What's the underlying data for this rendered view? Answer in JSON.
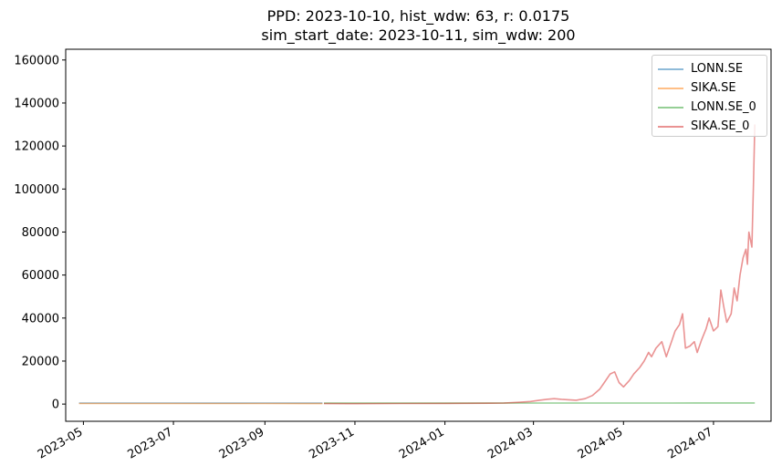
{
  "colors": {
    "LONN.SE": "#1f77b4",
    "SIKA.SE": "#ff7f0e",
    "LONN.SE_0": "#2ca02c",
    "SIKA.SE_0": "#d62728"
  },
  "chart_data": {
    "type": "line",
    "title_line1": "PPD: 2023-10-10, hist_wdw: 63, r: 0.0175",
    "title_line2": "sim_start_date: 2023-10-11, sim_wdw: 200",
    "xlabel": "",
    "ylabel": "",
    "xlim": [
      "2023-04-19",
      "2024-08-09"
    ],
    "ylim": [
      -8000,
      165000
    ],
    "x_tick_labels": [
      "2023-05",
      "2023-07",
      "2023-09",
      "2023-11",
      "2024-01",
      "2024-03",
      "2024-05",
      "2024-07"
    ],
    "y_tick_labels": [
      "0",
      "20000",
      "40000",
      "60000",
      "80000",
      "100000",
      "120000",
      "140000",
      "160000"
    ],
    "y_ticks": [
      0,
      20000,
      40000,
      60000,
      80000,
      100000,
      120000,
      140000,
      160000
    ],
    "grid": false,
    "legend_position": "top-right",
    "series": [
      {
        "name": "LONN.SE",
        "color_key": "LONN.SE",
        "x": [
          "2023-04-28",
          "2023-06-01",
          "2023-07-01",
          "2023-08-01",
          "2023-09-01",
          "2023-10-01",
          "2023-10-10"
        ],
        "y": [
          470,
          490,
          480,
          450,
          460,
          430,
          420
        ]
      },
      {
        "name": "SIKA.SE",
        "color_key": "SIKA.SE",
        "x": [
          "2023-04-28",
          "2023-06-01",
          "2023-07-01",
          "2023-08-01",
          "2023-09-01",
          "2023-10-01",
          "2023-10-10"
        ],
        "y": [
          270,
          280,
          275,
          260,
          250,
          230,
          220
        ]
      },
      {
        "name": "LONN.SE_0",
        "color_key": "LONN.SE_0",
        "x": [
          "2023-10-11",
          "2023-11-01",
          "2023-12-01",
          "2024-01-01",
          "2024-02-01",
          "2024-03-01",
          "2024-04-01",
          "2024-05-01",
          "2024-06-01",
          "2024-07-01",
          "2024-07-29"
        ],
        "y": [
          420,
          430,
          440,
          450,
          460,
          470,
          480,
          490,
          500,
          510,
          520
        ]
      },
      {
        "name": "SIKA.SE_0",
        "color_key": "SIKA.SE_0",
        "x": [
          "2023-10-11",
          "2023-11-01",
          "2023-12-01",
          "2024-01-01",
          "2024-01-15",
          "2024-02-01",
          "2024-02-10",
          "2024-02-20",
          "2024-02-28",
          "2024-03-05",
          "2024-03-10",
          "2024-03-15",
          "2024-03-20",
          "2024-03-25",
          "2024-03-30",
          "2024-04-05",
          "2024-04-10",
          "2024-04-15",
          "2024-04-18",
          "2024-04-22",
          "2024-04-25",
          "2024-04-28",
          "2024-05-01",
          "2024-05-05",
          "2024-05-08",
          "2024-05-12",
          "2024-05-15",
          "2024-05-18",
          "2024-05-20",
          "2024-05-23",
          "2024-05-27",
          "2024-05-30",
          "2024-06-03",
          "2024-06-05",
          "2024-06-08",
          "2024-06-10",
          "2024-06-12",
          "2024-06-15",
          "2024-06-18",
          "2024-06-20",
          "2024-06-23",
          "2024-06-26",
          "2024-06-28",
          "2024-07-01",
          "2024-07-04",
          "2024-07-06",
          "2024-07-08",
          "2024-07-10",
          "2024-07-13",
          "2024-07-15",
          "2024-07-17",
          "2024-07-19",
          "2024-07-21",
          "2024-07-23",
          "2024-07-24",
          "2024-07-25",
          "2024-07-27",
          "2024-07-28",
          "2024-07-29"
        ],
        "y": [
          220,
          200,
          260,
          300,
          350,
          400,
          500,
          800,
          1200,
          1800,
          2200,
          2500,
          2200,
          2000,
          1800,
          2500,
          4000,
          7000,
          10000,
          14000,
          15000,
          10000,
          8000,
          11000,
          14000,
          17000,
          20000,
          24000,
          22000,
          26000,
          29000,
          22000,
          30000,
          34000,
          37000,
          42000,
          26000,
          27000,
          29000,
          24000,
          30000,
          35000,
          40000,
          34000,
          36000,
          53000,
          45000,
          38000,
          42000,
          54000,
          48000,
          60000,
          68000,
          72000,
          65000,
          80000,
          73000,
          100000,
          130000
        ]
      }
    ]
  }
}
